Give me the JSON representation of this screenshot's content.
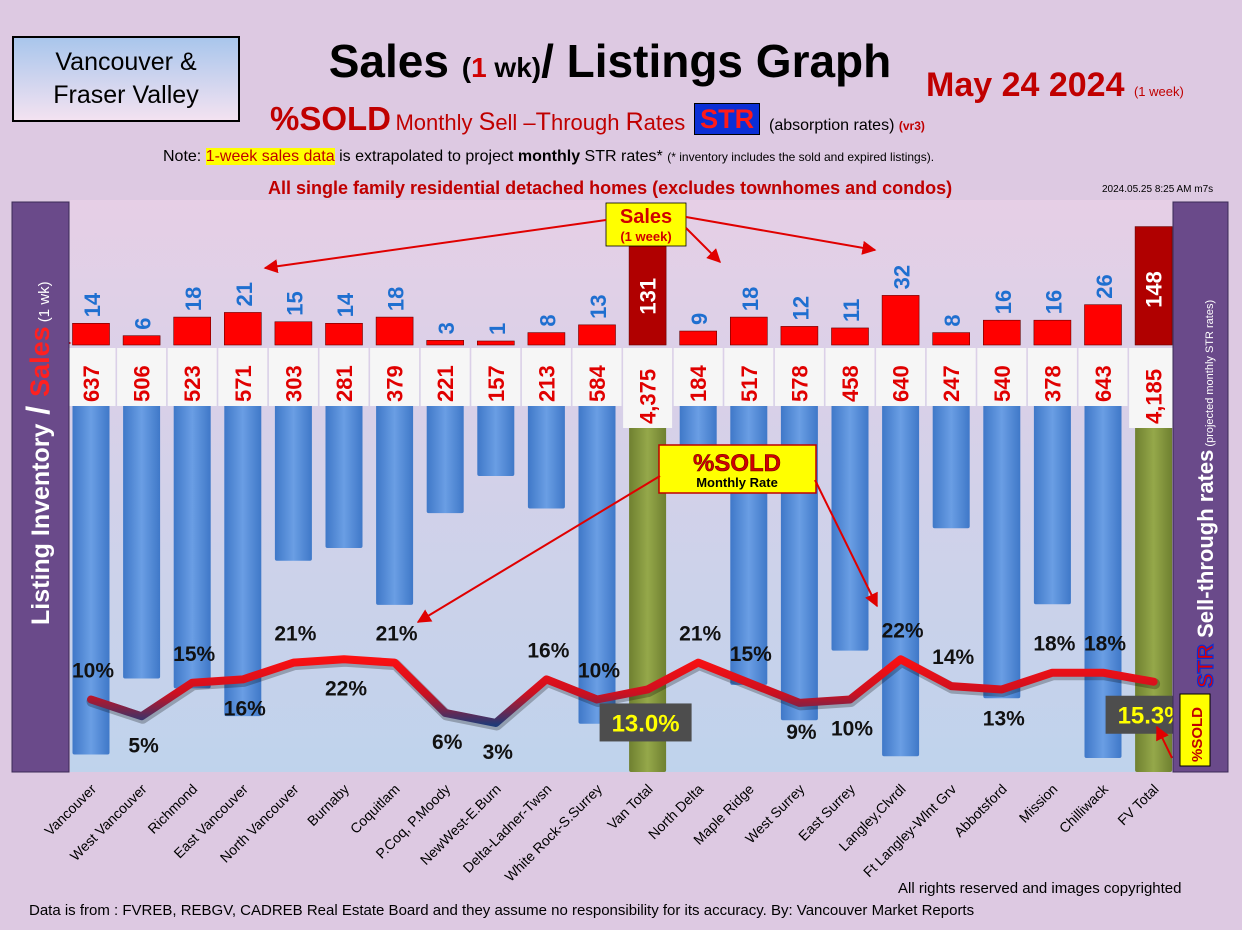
{
  "header": {
    "region_line1": "Vancouver &",
    "region_line2": "Fraser Valley",
    "title_part1": "Sales ",
    "title_paren_open": "(",
    "title_paren_num": "1",
    "title_paren_close": " wk)",
    "title_part2": "/ Listings Graph",
    "date": "May 24  2024",
    "date_note": "(1 week)",
    "subtitle_pct": "%SOLD",
    "subtitle_m": "Monthly ",
    "subtitle_S": "S",
    "subtitle_ell": "ell –",
    "subtitle_T": "T",
    "subtitle_hrough": "hrough ",
    "subtitle_R": "R",
    "subtitle_ates": "ates",
    "str_badge": "STR",
    "absorption": "(absorption rates)",
    "version": "(vr3)",
    "note_prefix": "Note: ",
    "note_highlight": "1-week sales data",
    "note_mid": " is extrapolated to project ",
    "note_bold": "monthly",
    "note_suffix": " STR rates* ",
    "note_small": "(* inventory includes the sold and expired listings).",
    "detached_note": "All single family residential detached homes (excludes townhomes and condos)",
    "timestamp": "2024.05.25 8:25 AM m7s"
  },
  "left_axis": {
    "part1": "Listing Inventory",
    "slash": " / ",
    "part2": "Sales",
    "part3": " (1 wk)"
  },
  "right_axis": {
    "str": "STR",
    "label": " Sell-through rates",
    "note": " (projected monthly STR rates)",
    "pct_box": "%SOLD"
  },
  "annotations": {
    "sales_label": "Sales",
    "sales_sub": "(1 week)",
    "sold_label": "%SOLD",
    "sold_sub": "Monthly Rate"
  },
  "footer": {
    "copyright": "All rights reserved and  images copyrighted",
    "source": "Data is from : FVREB, REBGV, CADREB Real Estate Board and they assume no responsibility for its accuracy. By: Vancouver Market Reports"
  },
  "colors": {
    "inventory": "#4f86d3",
    "inventory_total": "#7d8f36",
    "sales": "#ff0000",
    "sales_total": "#b00000",
    "listing_value": "#e00000",
    "sales_value": "#1f6fd0",
    "panel": "#6a4a8a"
  },
  "chart_data": {
    "type": "bar",
    "categories": [
      "Vancouver",
      "West Vancouver",
      "Richmond",
      "East Vancouver",
      "North Vancouver",
      "Burnaby",
      "Coquitlam",
      "P.Coq, P.Moody",
      "NewWest-E.Burn",
      "Delta-Ladner-Twsn",
      "White Rock-S.Surrey",
      "Van Total",
      "North Delta",
      "Maple Ridge",
      "West Surrey",
      "East Surrey",
      "Langley,Clvrdl",
      "Ft Langley-Wlnt Grv",
      "Abbotsford",
      "Mission",
      "Chilliwack",
      "FV Total"
    ],
    "series": [
      {
        "name": "Listing Inventory",
        "type": "bar",
        "values": [
          637,
          506,
          523,
          571,
          303,
          281,
          379,
          221,
          157,
          213,
          584,
          4375,
          184,
          517,
          578,
          458,
          640,
          247,
          540,
          378,
          643,
          4185
        ],
        "labels": [
          "637",
          "506",
          "523",
          "571",
          "303",
          "281",
          "379",
          "221",
          "157",
          "213",
          "584",
          "4,375",
          "184",
          "517",
          "578",
          "458",
          "640",
          "247",
          "540",
          "378",
          "643",
          "4,185"
        ]
      },
      {
        "name": "Sales",
        "type": "bar",
        "values": [
          14,
          6,
          18,
          21,
          15,
          14,
          18,
          3,
          1,
          8,
          13,
          131,
          9,
          18,
          12,
          11,
          32,
          8,
          16,
          16,
          26,
          148
        ]
      },
      {
        "name": "%SOLD",
        "type": "line",
        "values": [
          10,
          5,
          15,
          16,
          21,
          22,
          21,
          6,
          3,
          16,
          10,
          13.0,
          21,
          15,
          9,
          10,
          22,
          14,
          13,
          18,
          18,
          15.3
        ],
        "labels": [
          "10%",
          "5%",
          "15%",
          "16%",
          "21%",
          "22%",
          "21%",
          "6%",
          "3%",
          "16%",
          "10%",
          "13.0%",
          "21%",
          "15%",
          "9%",
          "10%",
          "22%",
          "14%",
          "13%",
          "18%",
          "18%",
          "15.3%"
        ]
      }
    ],
    "totals": [
      "Van Total",
      "FV Total"
    ],
    "grid": false,
    "legend": "none"
  }
}
